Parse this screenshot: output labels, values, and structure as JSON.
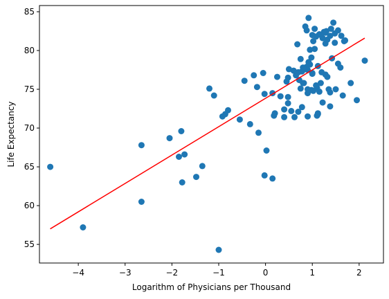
{
  "chart_data": {
    "type": "scatter",
    "title": "",
    "xlabel": "Logarithm of Physicians per Thousand",
    "ylabel": "Life Expectancy",
    "xlim": [
      -4.83,
      2.52
    ],
    "ylim": [
      52.6,
      85.8
    ],
    "xticks": [
      -4,
      -3,
      -2,
      -1,
      0,
      1,
      2
    ],
    "yticks": [
      55,
      60,
      65,
      70,
      75,
      80,
      85
    ],
    "grid": false,
    "legend": "none",
    "point_color": "#1f77b4",
    "line_color": "#ff0000",
    "series": [
      {
        "kind": "points",
        "x": [
          -4.6,
          -3.9,
          -2.65,
          -2.65,
          -2.05,
          -1.85,
          -1.8,
          -1.78,
          -1.73,
          -1.48,
          -1.35,
          -1.2,
          -1.1,
          -1.0,
          -0.92,
          -0.86,
          -0.8,
          -0.55,
          -0.45,
          -0.33,
          -0.25,
          -0.18,
          -0.15,
          -0.05,
          -0.02,
          -0.02,
          0.02,
          0.15,
          0.15,
          0.18,
          0.2,
          0.25,
          0.32,
          0.4,
          0.45,
          0.48,
          0.48,
          0.48,
          0.65,
          0.68,
          0.7,
          0.75,
          0.78,
          0.78,
          0.8,
          0.85,
          0.88,
          0.9,
          0.9,
          0.92,
          0.95,
          0.98,
          1.0,
          1.02,
          1.05,
          1.1,
          1.12,
          1.15,
          1.15,
          1.2,
          1.25,
          1.28,
          1.3,
          1.35,
          1.38,
          1.4,
          1.45,
          1.5,
          1.55,
          1.6,
          1.65,
          1.7,
          1.82,
          1.95,
          2.12,
          0.85,
          0.9,
          0.95,
          1.0,
          1.05,
          1.08,
          1.12,
          1.18,
          1.22,
          1.28,
          1.32,
          1.38,
          1.42,
          1.48,
          1.55,
          1.62,
          1.68,
          0.88,
          0.98,
          1.08,
          1.18,
          1.28,
          1.38,
          1.48,
          0.6,
          0.7,
          0.8,
          0.9,
          1.0,
          1.1,
          0.62,
          0.72,
          0.82,
          0.92,
          1.02,
          1.12,
          1.22,
          1.32,
          0.5,
          0.55,
          0.75,
          0.4
        ],
        "y": [
          65.0,
          57.2,
          60.5,
          67.8,
          68.7,
          66.3,
          69.6,
          63.0,
          66.6,
          63.7,
          65.1,
          75.1,
          74.2,
          54.3,
          71.5,
          71.8,
          72.3,
          71.1,
          76.1,
          70.5,
          76.8,
          75.3,
          69.4,
          77.1,
          63.9,
          74.4,
          67.1,
          74.5,
          63.5,
          71.6,
          71.9,
          76.6,
          74.1,
          72.4,
          76.0,
          76.5,
          74.0,
          73.2,
          76.8,
          80.8,
          77.2,
          78.9,
          72.7,
          77.3,
          75.8,
          83.1,
          82.6,
          74.5,
          77.5,
          84.2,
          80.1,
          79.1,
          82.0,
          81.2,
          82.8,
          75.2,
          78.0,
          82.1,
          74.7,
          77.2,
          82.4,
          80.9,
          82.5,
          75.0,
          72.8,
          82.8,
          83.6,
          75.0,
          82.6,
          77.8,
          74.2,
          81.3,
          75.8,
          73.6,
          78.7,
          77.6,
          75.0,
          78.2,
          77.1,
          80.2,
          81.8,
          71.8,
          82.0,
          81.6,
          82.3,
          81.4,
          81.9,
          79.0,
          82.2,
          78.3,
          81.9,
          81.2,
          77.9,
          74.9,
          75.5,
          75.8,
          76.9,
          74.6,
          81.0,
          77.4,
          72.1,
          77.8,
          71.5,
          77.0,
          71.6,
          71.4,
          76.2,
          75.8,
          78.5,
          74.8,
          71.9,
          73.3,
          76.6,
          77.6,
          72.2,
          75.1,
          71.4
        ]
      },
      {
        "kind": "fit-line",
        "x": [
          -4.6,
          2.12
        ],
        "y": [
          57.0,
          81.6
        ]
      }
    ]
  }
}
